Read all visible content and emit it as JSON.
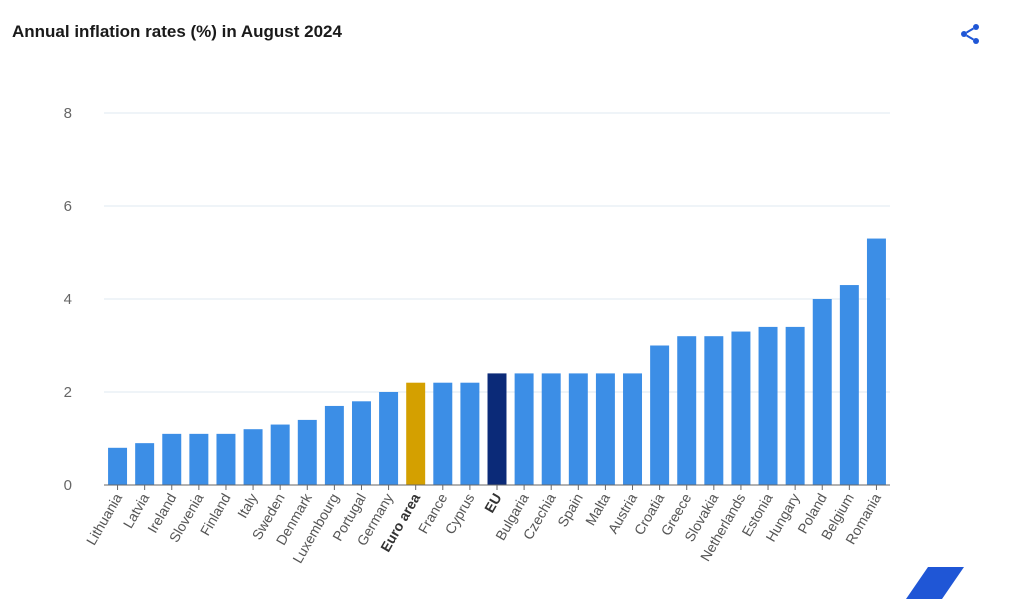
{
  "header": {
    "title": "Annual inflation rates (%) in August 2024",
    "share_icon": "share-icon"
  },
  "colors": {
    "bar": "#3c8ee6",
    "euro_area": "#d4a000",
    "eu": "#0b2a78",
    "grid": "#dfe8f2",
    "decor": "#1f56d6"
  },
  "chart_data": {
    "type": "bar",
    "title": "Annual inflation rates (%) in August 2024",
    "xlabel": "",
    "ylabel": "",
    "ylim": [
      0,
      8
    ],
    "yticks": [
      0,
      2,
      4,
      6,
      8
    ],
    "grid": true,
    "highlighted": {
      "Euro area": "euro_area",
      "EU": "eu"
    },
    "bold_labels": [
      "Euro area",
      "EU"
    ],
    "categories": [
      "Lithuania",
      "Latvia",
      "Ireland",
      "Slovenia",
      "Finland",
      "Italy",
      "Sweden",
      "Denmark",
      "Luxembourg",
      "Portugal",
      "Germany",
      "Euro area",
      "France",
      "Cyprus",
      "EU",
      "Bulgaria",
      "Czechia",
      "Spain",
      "Malta",
      "Austria",
      "Croatia",
      "Greece",
      "Slovakia",
      "Netherlands",
      "Estonia",
      "Hungary",
      "Poland",
      "Belgium",
      "Romania"
    ],
    "values": [
      0.8,
      0.9,
      1.1,
      1.1,
      1.1,
      1.2,
      1.3,
      1.4,
      1.7,
      1.8,
      2.0,
      2.2,
      2.2,
      2.2,
      2.4,
      2.4,
      2.4,
      2.4,
      2.4,
      2.4,
      3.0,
      3.2,
      3.2,
      3.3,
      3.4,
      3.4,
      4.0,
      4.3,
      5.3
    ]
  }
}
